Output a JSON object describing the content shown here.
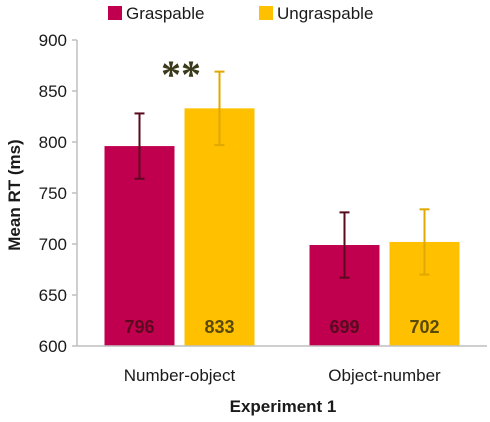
{
  "chart_data": {
    "type": "bar",
    "title": "",
    "xlabel": "Experiment 1",
    "ylabel": "Mean RT (ms)",
    "ylim": [
      600,
      900
    ],
    "yticks": [
      600,
      650,
      700,
      750,
      800,
      850,
      900
    ],
    "categories": [
      "Number-object",
      "Object-number"
    ],
    "series": [
      {
        "name": "Graspable",
        "color": "#c0004f",
        "values": [
          796,
          699
        ],
        "error": [
          32,
          32
        ],
        "labels": [
          "796",
          "699"
        ],
        "label_color": "#5a0a1e"
      },
      {
        "name": "Ungraspable",
        "color": "#ffc000",
        "values": [
          833,
          702
        ],
        "error": [
          36,
          32
        ],
        "labels": [
          "833",
          "702"
        ],
        "label_color": "#5a4a0a"
      }
    ],
    "legend_position": "top",
    "grid": false,
    "annotations": [
      {
        "text": "**",
        "category": "Number-object"
      }
    ]
  }
}
